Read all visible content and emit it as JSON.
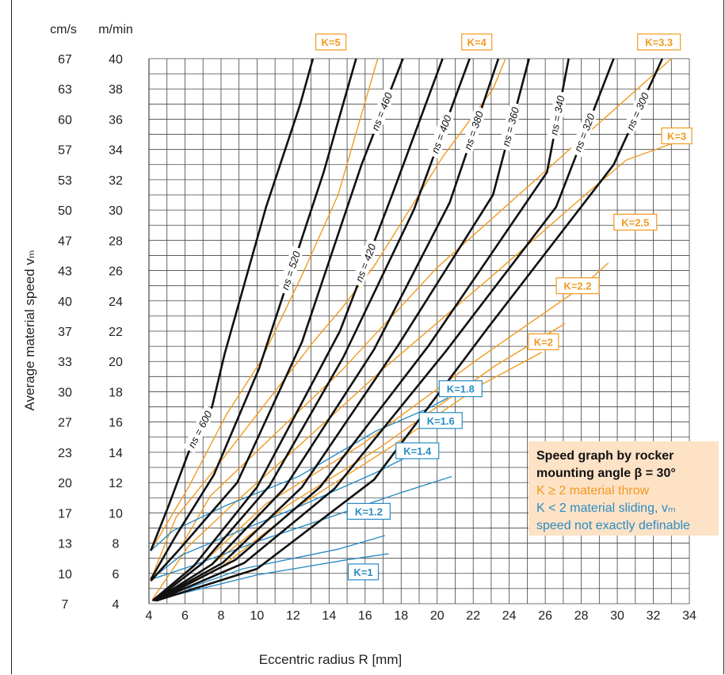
{
  "chart_data": {
    "type": "line",
    "xlabel": "Eccentric radius R [mm]",
    "ylabel": "Average material speed vₘ",
    "x_unit": "",
    "y_units": [
      "cm/s",
      "m/min"
    ],
    "xlim": [
      4,
      34
    ],
    "ylim": [
      4,
      40
    ],
    "x_ticks": [
      4,
      6,
      8,
      10,
      12,
      14,
      16,
      18,
      20,
      22,
      24,
      26,
      28,
      30,
      32,
      34
    ],
    "y_ticks": [
      4,
      6,
      8,
      10,
      12,
      14,
      16,
      18,
      20,
      22,
      24,
      26,
      28,
      30,
      32,
      34,
      36,
      38,
      40
    ],
    "y_ticks_cms": [
      "7",
      "10",
      "13",
      "17",
      "20",
      "23",
      "27",
      "30",
      "33",
      "37",
      "40",
      "43",
      "47",
      "50",
      "53",
      "57",
      "60",
      "63",
      "67"
    ],
    "grid": true,
    "ns_series": [
      {
        "name": "ns = 600",
        "points": [
          [
            4.1,
            7.5
          ],
          [
            5.1,
            10.5
          ],
          [
            6.2,
            14
          ],
          [
            7.5,
            17
          ],
          [
            8.2,
            20.5
          ],
          [
            10.5,
            30.2
          ],
          [
            12.4,
            37
          ],
          [
            13.1,
            40
          ]
        ]
      },
      {
        "name": "ns = 520",
        "points": [
          [
            4.1,
            5.6
          ],
          [
            5.5,
            8.5
          ],
          [
            7.6,
            12.5
          ],
          [
            10.1,
            19.5
          ],
          [
            13.7,
            32.5
          ],
          [
            15.5,
            40
          ]
        ]
      },
      {
        "name": "ns = 460",
        "points": [
          [
            4.1,
            5.5
          ],
          [
            5.7,
            7.6
          ],
          [
            8.9,
            12
          ],
          [
            12.5,
            21.3
          ],
          [
            15.8,
            33
          ],
          [
            18.1,
            40
          ]
        ]
      },
      {
        "name": "ns = 420",
        "points": [
          [
            4.2,
            4.2
          ],
          [
            6.5,
            6.5
          ],
          [
            10,
            11.7
          ],
          [
            14.6,
            22
          ],
          [
            17.5,
            31
          ],
          [
            20.3,
            40
          ]
        ]
      },
      {
        "name": "ns = 400",
        "points": [
          [
            4.3,
            4.2
          ],
          [
            7,
            6.7
          ],
          [
            10.7,
            11.8
          ],
          [
            14.8,
            20.3
          ],
          [
            18.7,
            30
          ],
          [
            21.8,
            40
          ]
        ]
      },
      {
        "name": "ns = 380",
        "points": [
          [
            4.3,
            4.2
          ],
          [
            7.5,
            6.6
          ],
          [
            11.5,
            11.6
          ],
          [
            16.5,
            20.8
          ],
          [
            20.7,
            30.5
          ],
          [
            23.4,
            40
          ]
        ]
      },
      {
        "name": "ns = 360",
        "points": [
          [
            4.3,
            4.2
          ],
          [
            8.1,
            6.7
          ],
          [
            12.5,
            11.7
          ],
          [
            17.8,
            21
          ],
          [
            23.1,
            31
          ],
          [
            25.1,
            40
          ]
        ]
      },
      {
        "name": "ns = 340",
        "points": [
          [
            4.4,
            4.2
          ],
          [
            8.8,
            6.9
          ],
          [
            13.5,
            11.7
          ],
          [
            19.5,
            21
          ],
          [
            26.1,
            32.5
          ],
          [
            27.3,
            40
          ]
        ]
      },
      {
        "name": "ns = 320",
        "points": [
          [
            4.4,
            4.2
          ],
          [
            9.3,
            6.7
          ],
          [
            14.3,
            11.6
          ],
          [
            20.5,
            20.7
          ],
          [
            26.6,
            30.2
          ],
          [
            29.8,
            40
          ]
        ]
      },
      {
        "name": "ns = 300",
        "points": [
          [
            4.4,
            4.2
          ],
          [
            10,
            6.3
          ],
          [
            16.5,
            12.2
          ],
          [
            22.8,
            22.2
          ],
          [
            29.8,
            33
          ],
          [
            32.5,
            40
          ]
        ]
      }
    ],
    "k_series": [
      {
        "name": "K = 5",
        "label": "K=5",
        "color": "#f29a1f",
        "points": [
          [
            4.1,
            7.5
          ],
          [
            6.2,
            11.7
          ],
          [
            8.3,
            16.5
          ],
          [
            10.2,
            20
          ],
          [
            12.5,
            25.7
          ],
          [
            14.5,
            31
          ],
          [
            16.7,
            40
          ]
        ]
      },
      {
        "name": "K = 4",
        "label": "K=4",
        "color": "#f29a1f",
        "points": [
          [
            4.1,
            5.6
          ],
          [
            5.5,
            9.7
          ],
          [
            7.6,
            12.8
          ],
          [
            10,
            16.5
          ],
          [
            13.2,
            21.4
          ],
          [
            14.7,
            23.5
          ],
          [
            16.5,
            26.3
          ],
          [
            20.3,
            33.5
          ],
          [
            23.1,
            38
          ],
          [
            23.8,
            40
          ]
        ]
      },
      {
        "name": "K = 3.3",
        "label": "K=3.3",
        "color": "#f29a1f",
        "points": [
          [
            4.1,
            5.5
          ],
          [
            5.7,
            7.6
          ],
          [
            7.4,
            11.1
          ],
          [
            10.2,
            14.3
          ],
          [
            14.7,
            19.4
          ],
          [
            20,
            26.2
          ],
          [
            26.5,
            33.1
          ],
          [
            33,
            40
          ]
        ]
      },
      {
        "name": "K = 3",
        "label": "K=3",
        "color": "#f29a1f",
        "points": [
          [
            4.2,
            4.3
          ],
          [
            6.2,
            7.8
          ],
          [
            8.6,
            10.5
          ],
          [
            12.3,
            14.4
          ],
          [
            17.1,
            19.6
          ],
          [
            23.1,
            25.7
          ],
          [
            28.5,
            31.3
          ],
          [
            30.5,
            33.3
          ],
          [
            34,
            34.8
          ]
        ]
      },
      {
        "name": "K = 2.5",
        "label": "K=2.5",
        "color": "#f29a1f",
        "points": [
          [
            4.2,
            4.2
          ],
          [
            7,
            6.7
          ],
          [
            10.5,
            10.6
          ],
          [
            15.8,
            14.5
          ],
          [
            22.2,
            20.1
          ],
          [
            28,
            24.9
          ],
          [
            29.5,
            26.5
          ]
        ]
      },
      {
        "name": "K = 2.2",
        "label": "K=2.2",
        "color": "#f29a1f",
        "points": [
          [
            4.3,
            4.2
          ],
          [
            7.5,
            6.6
          ],
          [
            11.7,
            10.5
          ],
          [
            16.8,
            14.3
          ],
          [
            23.2,
            19.7
          ],
          [
            27.1,
            22.5
          ]
        ]
      },
      {
        "name": "K = 2",
        "label": "K=2",
        "color": "#f29a1f",
        "points": [
          [
            4.3,
            4.2
          ],
          [
            8.1,
            6.5
          ],
          [
            12.5,
            10.6
          ],
          [
            17.5,
            14.4
          ],
          [
            22.5,
            18.5
          ],
          [
            25.8,
            20.6
          ]
        ]
      },
      {
        "name": "K = 1.8",
        "label": "K=1.8",
        "color": "#2a8cc4",
        "points": [
          [
            4.1,
            7.5
          ],
          [
            5.3,
            8.8
          ],
          [
            8.3,
            10.5
          ],
          [
            12.3,
            12.4
          ],
          [
            16.6,
            15.4
          ],
          [
            19.5,
            16.9
          ],
          [
            20.6,
            17.6
          ]
        ]
      },
      {
        "name": "K = 1.6",
        "label": "K=1.6",
        "color": "#2a8cc4",
        "points": [
          [
            4.1,
            5.6
          ],
          [
            5.8,
            7.2
          ],
          [
            8.4,
            8.5
          ],
          [
            12.5,
            10.5
          ],
          [
            16.5,
            12.6
          ],
          [
            19.5,
            14.4
          ]
        ]
      },
      {
        "name": "K = 1.4",
        "label": "K=1.4",
        "color": "#2a8cc4",
        "points": [
          [
            4.1,
            5.6
          ],
          [
            6.4,
            6.5
          ],
          [
            10,
            8.1
          ],
          [
            13.5,
            9.5
          ],
          [
            17.9,
            11.3
          ],
          [
            20.8,
            12.4
          ]
        ]
      },
      {
        "name": "K = 1.2",
        "label": "K=1.2",
        "color": "#2a8cc4",
        "points": [
          [
            4.2,
            4.2
          ],
          [
            9.2,
            6.3
          ],
          [
            14.5,
            7.6
          ],
          [
            17.1,
            8.5
          ]
        ]
      },
      {
        "name": "K = 1",
        "label": "K=1",
        "color": "#2a8cc4",
        "points": [
          [
            4.2,
            4.2
          ],
          [
            10,
            5.9
          ],
          [
            15,
            6.9
          ],
          [
            17.3,
            7.3
          ]
        ]
      }
    ],
    "colors": {
      "throw": "#f29a1f",
      "sliding": "#2a8cc4",
      "ns": "#111111",
      "grid": "#444444"
    }
  },
  "info_box": {
    "title_line1": "Speed graph by rocker",
    "title_line2": "mounting angle β = 30°",
    "throw_text": "K ≥ 2 material throw",
    "sliding_text_line1": "K < 2 material sliding, vₘ",
    "sliding_text_line2": "speed not exactly definable",
    "bg_color": "#fde2c6"
  }
}
